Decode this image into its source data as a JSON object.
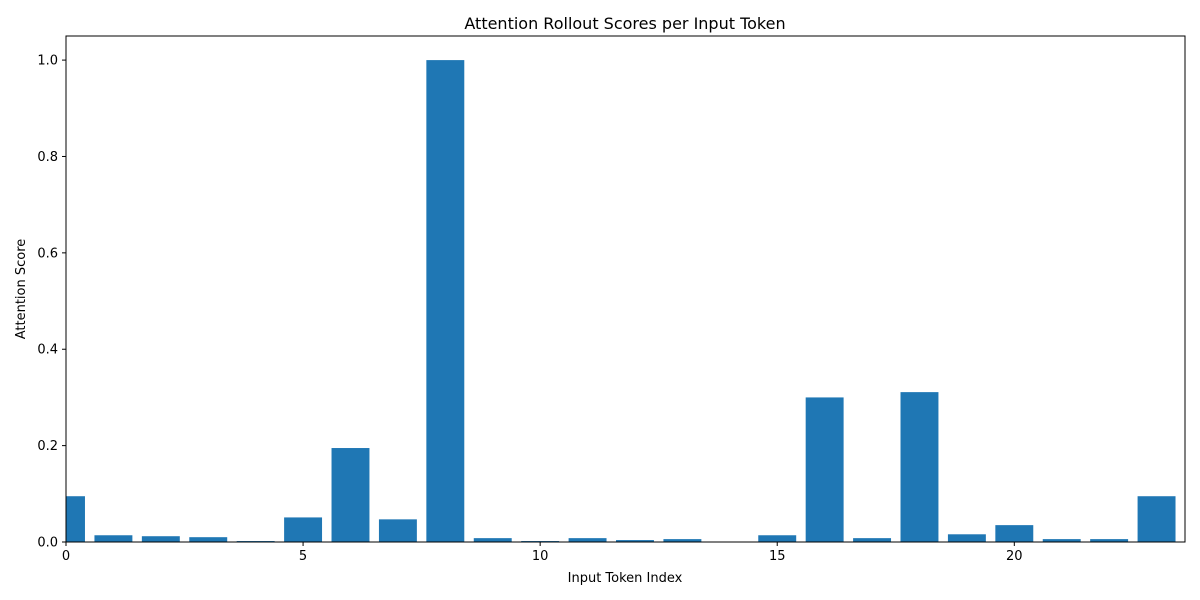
{
  "chart_data": {
    "type": "bar",
    "title": "Attention Rollout Scores per Input Token",
    "xlabel": "Input Token Index",
    "ylabel": "Attention Score",
    "x": [
      0,
      1,
      2,
      3,
      4,
      5,
      6,
      7,
      8,
      9,
      10,
      11,
      12,
      13,
      14,
      15,
      16,
      17,
      18,
      19,
      20,
      21,
      22,
      23
    ],
    "values": [
      0.095,
      0.014,
      0.012,
      0.01,
      0.002,
      0.051,
      0.195,
      0.047,
      1.0,
      0.008,
      0.002,
      0.008,
      0.004,
      0.006,
      0.0,
      0.014,
      0.3,
      0.008,
      0.311,
      0.016,
      0.035,
      0.006,
      0.006,
      0.095
    ],
    "xlim": [
      0,
      23.6
    ],
    "ylim": [
      0,
      1.05
    ],
    "xticks": [
      0,
      5,
      10,
      15,
      20
    ],
    "yticks": [
      0.0,
      0.2,
      0.4,
      0.6,
      0.8,
      1.0
    ],
    "xtick_labels": [
      "0",
      "5",
      "10",
      "15",
      "20"
    ],
    "ytick_labels": [
      "0.0",
      "0.2",
      "0.4",
      "0.6",
      "0.8",
      "1.0"
    ],
    "bar_color": "#1f77b4",
    "grid": false,
    "legend": "none"
  }
}
